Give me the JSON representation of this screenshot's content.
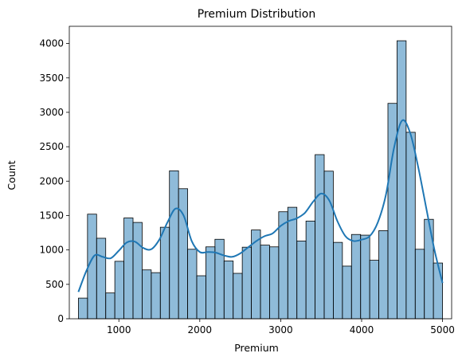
{
  "chart_data": {
    "type": "histogram",
    "title": "Premium Distribution",
    "xlabel": "Premium",
    "ylabel": "Count",
    "xlim": [
      387.5,
      5112.5
    ],
    "ylim": [
      0,
      4250
    ],
    "x_ticks": [
      1000,
      2000,
      3000,
      4000,
      5000
    ],
    "y_ticks": [
      0,
      500,
      1000,
      1500,
      2000,
      2500,
      3000,
      3500,
      4000
    ],
    "bin_start": 500,
    "bin_width": 112.5,
    "counts": [
      300,
      1520,
      1170,
      375,
      835,
      1465,
      1400,
      710,
      670,
      1330,
      2150,
      1890,
      1010,
      625,
      1045,
      1155,
      840,
      660,
      1040,
      1290,
      1070,
      1045,
      1555,
      1620,
      1130,
      1420,
      2385,
      2145,
      1110,
      765,
      1225,
      1215,
      850,
      1280,
      3130,
      4040,
      2710,
      1010,
      1445,
      810
    ],
    "kde": {
      "x": [
        500,
        600,
        700,
        800,
        900,
        1000,
        1100,
        1200,
        1300,
        1400,
        1500,
        1600,
        1700,
        1800,
        1900,
        2000,
        2100,
        2200,
        2300,
        2400,
        2500,
        2600,
        2700,
        2800,
        2900,
        3000,
        3100,
        3200,
        3300,
        3400,
        3500,
        3600,
        3700,
        3800,
        3900,
        4000,
        4100,
        4200,
        4300,
        4400,
        4500,
        4600,
        4700,
        4800,
        4900,
        5000
      ],
      "y": [
        390,
        700,
        920,
        900,
        880,
        990,
        1110,
        1120,
        1030,
        1010,
        1150,
        1400,
        1600,
        1500,
        1130,
        970,
        970,
        960,
        920,
        900,
        950,
        1040,
        1130,
        1200,
        1240,
        1350,
        1420,
        1460,
        1540,
        1700,
        1820,
        1720,
        1420,
        1200,
        1130,
        1150,
        1200,
        1400,
        1800,
        2480,
        2880,
        2700,
        2200,
        1600,
        1000,
        520
      ]
    },
    "bar_color": "#1f77b4",
    "bar_opacity": 0.5,
    "line_color": "#1f77b4",
    "grid": false,
    "legend": "none"
  }
}
